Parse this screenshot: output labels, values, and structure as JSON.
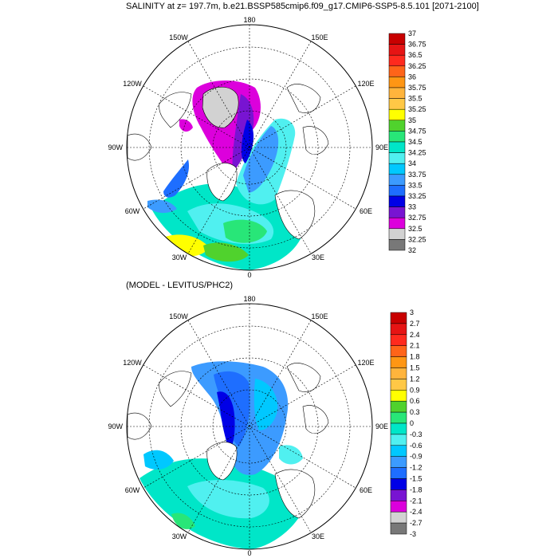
{
  "figure": {
    "top_title": "SALINITY at z= 197.7m, b.e21.BSSP585cmip6.f09_g17.CMIP6-SSP5-8.5.101 [2071-2100]",
    "bottom_title": "(MODEL - LEVITUS/PHC2)"
  },
  "longitude_labels": {
    "lon_180": "180",
    "lon_150e": "150E",
    "lon_120e": "120E",
    "lon_90e": "90E",
    "lon_60e": "60E",
    "lon_30e": "30E",
    "lon_0": "0",
    "lon_30w": "30W",
    "lon_60w": "60W",
    "lon_90w": "90W",
    "lon_120w": "120W",
    "lon_150w": "150W"
  },
  "chart_data": [
    {
      "type": "heatmap",
      "title": "SALINITY at z= 197.7m, b.e21.BSSP585cmip6.f09_g17.CMIP6-SSP5-8.5.101 [2071-2100]",
      "projection": "north polar stereographic",
      "colorbar": {
        "labels": [
          "37",
          "36.75",
          "36.5",
          "36.25",
          "36",
          "35.75",
          "35.5",
          "35.25",
          "35",
          "34.75",
          "34.5",
          "34.25",
          "34",
          "33.75",
          "33.5",
          "33.25",
          "33",
          "32.75",
          "32.5",
          "32.25",
          "32"
        ],
        "colors": [
          "#c80000",
          "#e61414",
          "#ff2a1e",
          "#ff6419",
          "#ff9614",
          "#ffb43c",
          "#ffc846",
          "#ffff00",
          "#50d22d",
          "#28e678",
          "#00e6c8",
          "#50f0f0",
          "#00c8ff",
          "#3c9bff",
          "#1e6eff",
          "#0000e6",
          "#7814d2",
          "#dc00dc",
          "#d2d2d2",
          "#787878"
        ],
        "placement": "right"
      }
    },
    {
      "type": "heatmap",
      "title": "(MODEL - LEVITUS/PHC2)",
      "projection": "north polar stereographic",
      "colorbar": {
        "labels": [
          "3",
          "2.7",
          "2.4",
          "2.1",
          "1.8",
          "1.5",
          "1.2",
          "0.9",
          "0.6",
          "0.3",
          "0",
          "-0.3",
          "-0.6",
          "-0.9",
          "-1.2",
          "-1.5",
          "-1.8",
          "-2.1",
          "-2.4",
          "-2.7",
          "-3"
        ],
        "colors": [
          "#c80000",
          "#e61414",
          "#ff2a1e",
          "#ff6419",
          "#ff9614",
          "#ffb43c",
          "#ffc846",
          "#ffff00",
          "#50d22d",
          "#28e678",
          "#00e6c8",
          "#50f0f0",
          "#00c8ff",
          "#3c9bff",
          "#1e6eff",
          "#0000e6",
          "#7814d2",
          "#dc00dc",
          "#d2d2d2",
          "#787878"
        ],
        "placement": "right"
      }
    }
  ]
}
